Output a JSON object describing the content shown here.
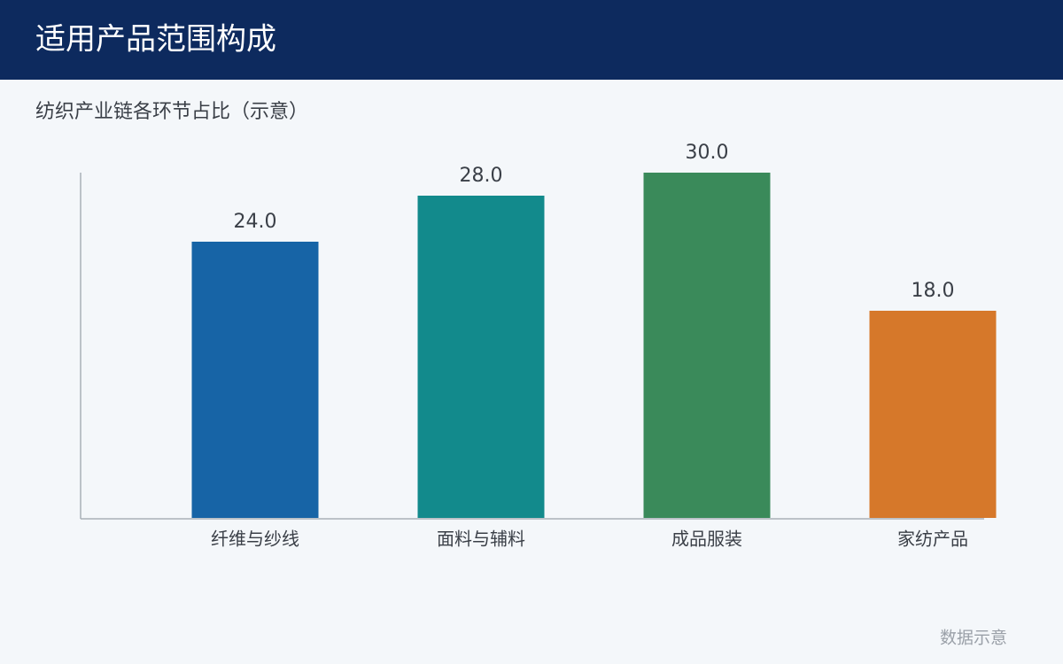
{
  "chart_data": {
    "type": "bar",
    "title": "适用产品范围构成",
    "subtitle": "纺织产业链各环节占比（示意）",
    "categories": [
      "纤维与纱线",
      "面料与辅料",
      "成品服装",
      "家纺产品"
    ],
    "values": [
      24,
      28,
      30,
      18
    ],
    "value_labels": [
      "24.0",
      "28.0",
      "30.0",
      "18.0"
    ],
    "colors": [
      "#1764a6",
      "#128a8c",
      "#3a8a5a",
      "#d6782a"
    ],
    "ylim": [
      0,
      30
    ],
    "grid": false,
    "footnote": "数据示意"
  }
}
